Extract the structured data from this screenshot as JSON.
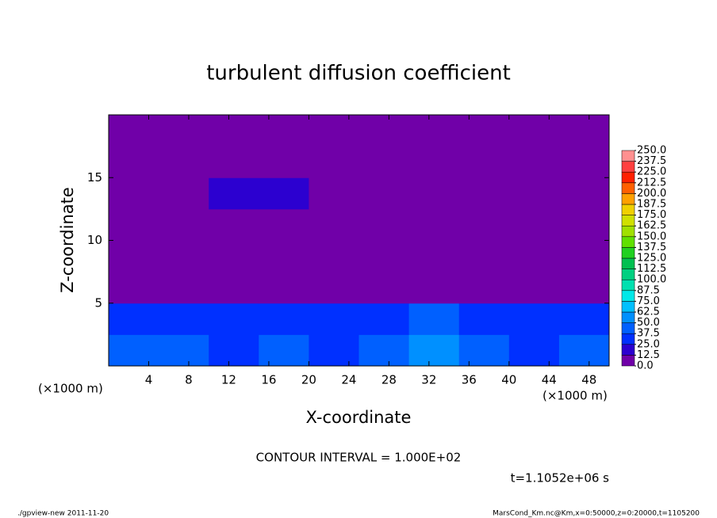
{
  "chart_data": {
    "type": "heatmap",
    "title": "turbulent diffusion coefficient",
    "xlabel": "X-coordinate",
    "ylabel": "Z-coordinate",
    "x_unit": "(×1000 m)",
    "annotation": "CONTOUR INTERVAL = 1.000E+02",
    "time": "t=1.1052e+06 s",
    "footer_left": "./gpview-new  2011-11-20",
    "footer_right": "MarsCond_Km.nc@Km,x=0:50000,z=0:20000,t=1105200",
    "xlim": [
      0,
      50
    ],
    "ylim": [
      0,
      20
    ],
    "xticks": [
      4,
      8,
      12,
      16,
      20,
      24,
      28,
      32,
      36,
      40,
      44,
      48
    ],
    "yticks": [
      5,
      10,
      15
    ],
    "xbins": [
      0,
      5,
      10,
      15,
      20,
      25,
      30,
      35,
      40,
      45,
      50
    ],
    "ybins": [
      0,
      2.5,
      5,
      7.5,
      10,
      12.5,
      15,
      17.5,
      20
    ],
    "z": [
      [
        45,
        40,
        35,
        40,
        35,
        40,
        60,
        40,
        35,
        40
      ],
      [
        30,
        35,
        30,
        30,
        25,
        30,
        45,
        30,
        30,
        30
      ],
      [
        3,
        5,
        2,
        0,
        2,
        5,
        5,
        3,
        3,
        0
      ],
      [
        0,
        0,
        2,
        0,
        0,
        0,
        0,
        0,
        0,
        0
      ],
      [
        0,
        0,
        0,
        0,
        0,
        0,
        0,
        0,
        0,
        0
      ],
      [
        0,
        0,
        15,
        15,
        0,
        0,
        0,
        0,
        0,
        0
      ],
      [
        0,
        0,
        0,
        0,
        0,
        0,
        0,
        0,
        0,
        0
      ],
      [
        0,
        0,
        0,
        0,
        0,
        0,
        0,
        0,
        0,
        0
      ]
    ],
    "levels": [
      {
        "value": 0,
        "label": "0.0"
      },
      {
        "value": 12.5,
        "label": "12.5"
      },
      {
        "value": 25,
        "label": "25.0"
      },
      {
        "value": 37.5,
        "label": "37.5"
      },
      {
        "value": 50,
        "label": "50.0"
      },
      {
        "value": 62.5,
        "label": "62.5"
      },
      {
        "value": 75,
        "label": "75.0"
      },
      {
        "value": 87.5,
        "label": "87.5"
      },
      {
        "value": 100,
        "label": "100.0"
      },
      {
        "value": 112.5,
        "label": "112.5"
      },
      {
        "value": 125,
        "label": "125.0"
      },
      {
        "value": 137.5,
        "label": "137.5"
      },
      {
        "value": 150,
        "label": "150.0"
      },
      {
        "value": 162.5,
        "label": "162.5"
      },
      {
        "value": 175,
        "label": "175.0"
      },
      {
        "value": 187.5,
        "label": "187.5"
      },
      {
        "value": 200,
        "label": "200.0"
      },
      {
        "value": 212.5,
        "label": "212.5"
      },
      {
        "value": 225,
        "label": "225.0"
      },
      {
        "value": 237.5,
        "label": "237.5"
      },
      {
        "value": 250,
        "label": "250.0"
      }
    ],
    "colors": [
      "#7000a8",
      "#2c00d0",
      "#0030ff",
      "#0060ff",
      "#0090ff",
      "#00c0ff",
      "#00e8e8",
      "#00e0b0",
      "#00d080",
      "#00c050",
      "#20d020",
      "#60e000",
      "#a0e000",
      "#d0e000",
      "#f0d000",
      "#ffa000",
      "#ff6000",
      "#ff2000",
      "#ff4040",
      "#ff9090"
    ]
  }
}
